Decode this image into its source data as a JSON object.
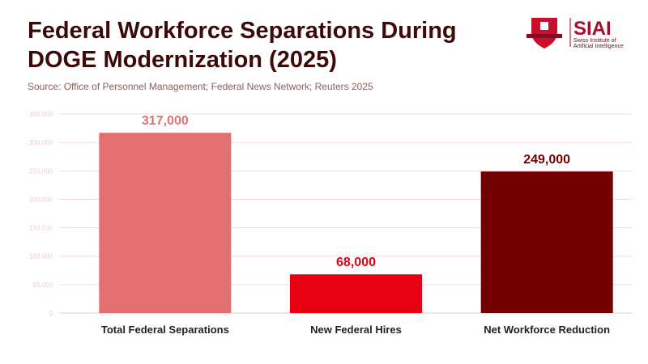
{
  "chart_data": {
    "type": "bar",
    "title": "Federal Workforce Separations During DOGE Modernization (2025)",
    "subtitle": "Source: Office of Personnel Management; Federal News Network; Reuters 2025",
    "categories": [
      "Total Federal Separations",
      "New Federal Hires",
      "Net Workforce Reduction"
    ],
    "values": [
      317000,
      68000,
      249000
    ],
    "data_labels": [
      "317,000",
      "68,000",
      "249,000"
    ],
    "colors": [
      "#e37070",
      "#e60012",
      "#730000"
    ],
    "xlabel": "",
    "ylabel": "",
    "ylim": [
      0,
      350000
    ],
    "yticks": [
      0,
      50000,
      100000,
      150000,
      200000,
      250000,
      300000,
      350000
    ],
    "ytick_labels": [
      "0",
      "50,000",
      "100,000",
      "150,000",
      "200,000",
      "250,000",
      "300,000",
      "350,000"
    ],
    "grid": true,
    "legend": "none"
  },
  "logo": {
    "name": "SIAI",
    "subtitle_line1": "Swiss Institute of",
    "subtitle_line2": "Artificial Intelligence"
  }
}
